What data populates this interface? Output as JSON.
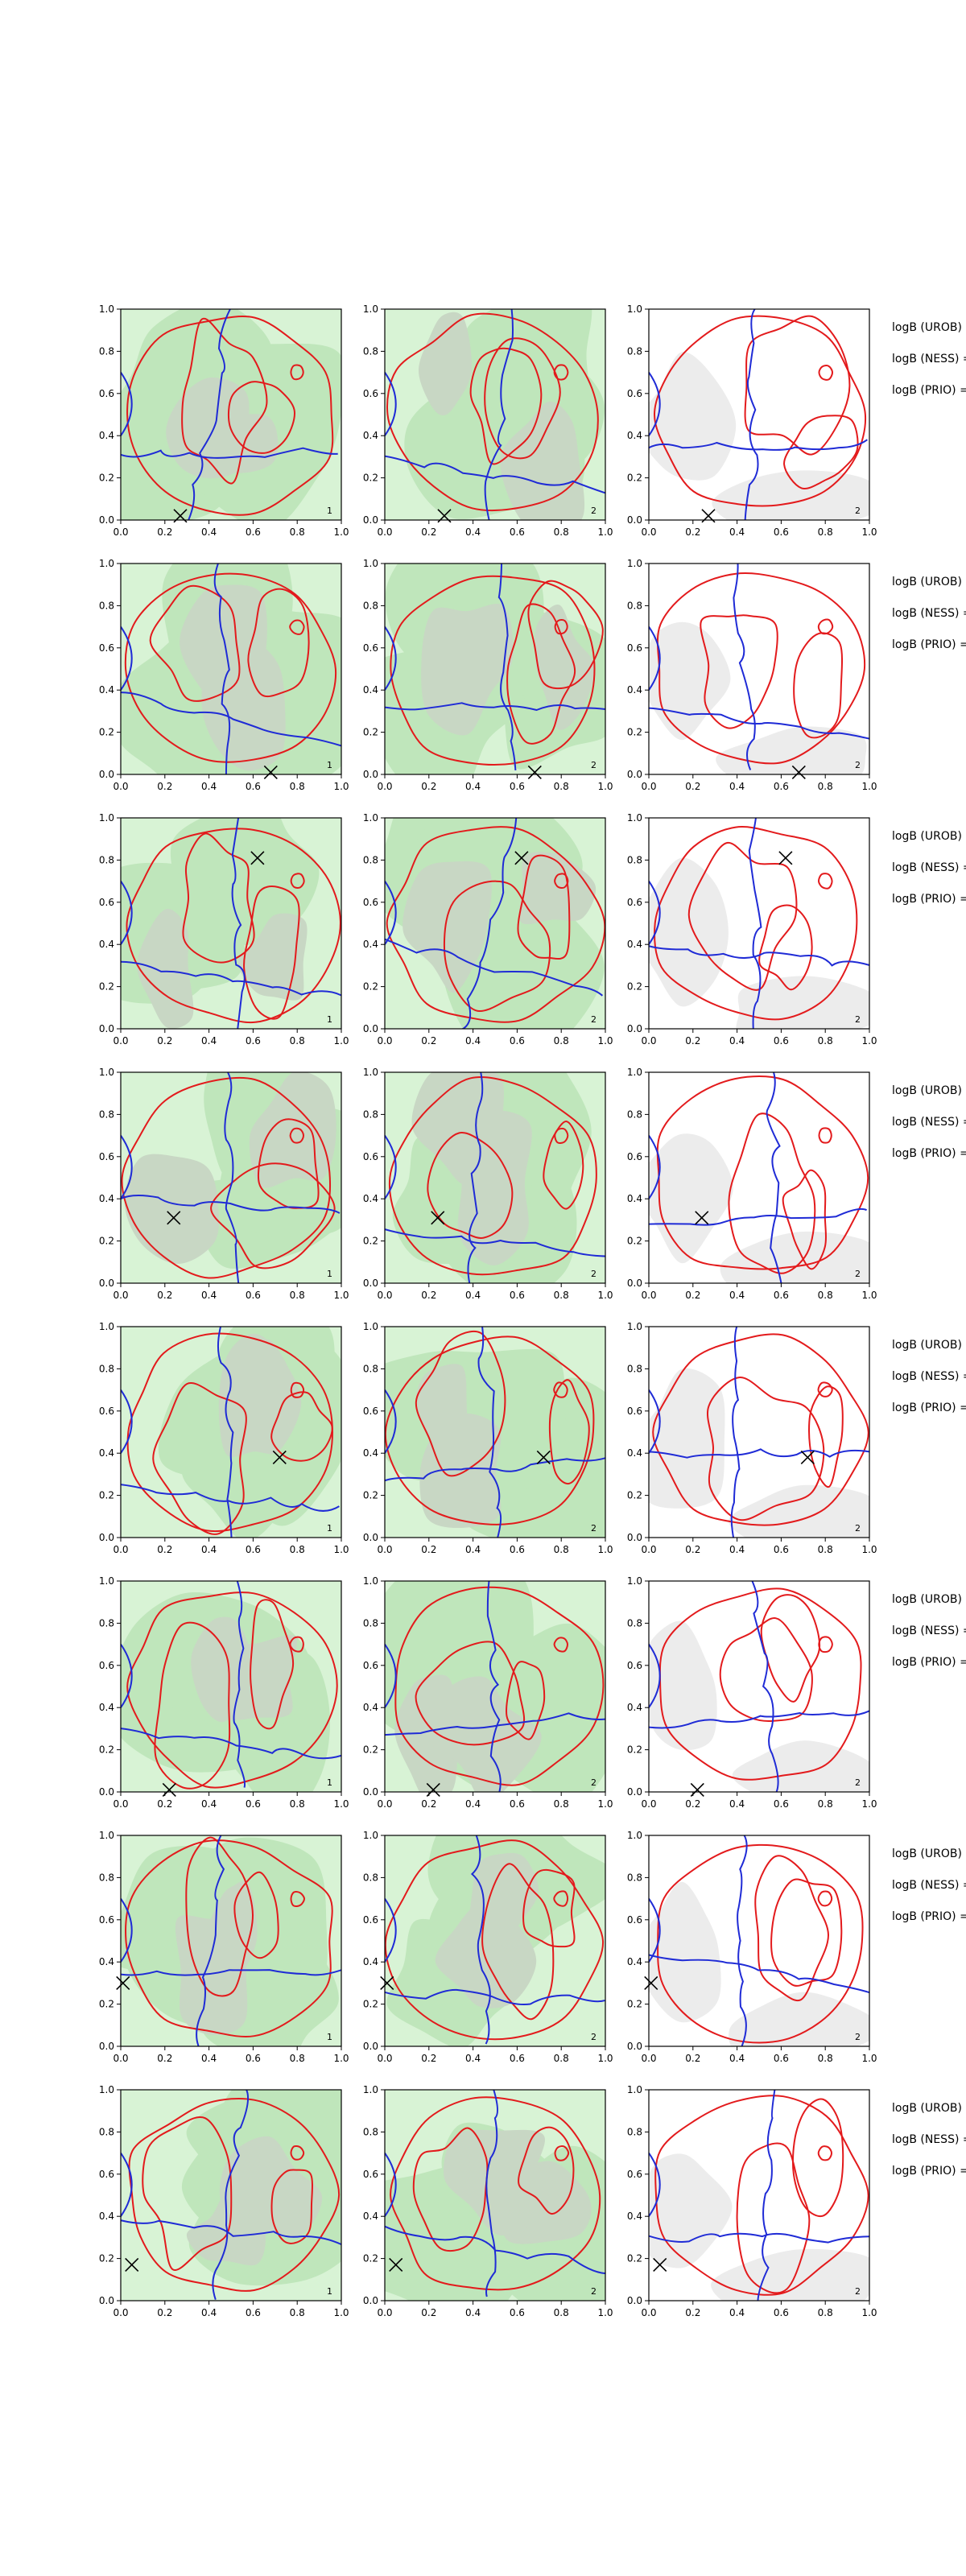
{
  "colors": {
    "bg_light_green": "#d8f3d5",
    "bg_mid_green": "#bfe6bb",
    "bg_grey_fill": "#c8d7c4",
    "panel3_bg": "#ffffff",
    "panel3_grey": "#ececec",
    "contour_red": "#e31a1c",
    "contour_blue": "#1f2bd6",
    "marker": "#000000"
  },
  "rows": [
    {
      "marker": [
        0.27,
        0.02
      ],
      "logb_labels": [
        "logB (UROB) =",
        "logB (NESS) =",
        "logB (PRIO) ="
      ]
    },
    {
      "marker": [
        0.68,
        0.01
      ],
      "logb_labels": [
        "logB (UROB) =",
        "logB (NESS) =",
        "logB (PRIO) ="
      ]
    },
    {
      "marker": [
        0.62,
        0.81
      ],
      "logb_labels": [
        "logB (UROB) =",
        "logB (NESS) =",
        "logB (PRIO) ="
      ]
    },
    {
      "marker": [
        0.24,
        0.31
      ],
      "logb_labels": [
        "logB (UROB) =",
        "logB (NESS) =",
        "logB (PRIO) ="
      ]
    },
    {
      "marker": [
        0.72,
        0.38
      ],
      "logb_labels": [
        "logB (UROB) =",
        "logB (NESS) =",
        "logB (PRIO) ="
      ]
    },
    {
      "marker": [
        0.22,
        0.01
      ],
      "logb_labels": [
        "logB (UROB) =",
        "logB (NESS) =",
        "logB (PRIO) ="
      ]
    },
    {
      "marker": [
        0.01,
        0.3
      ],
      "logb_labels": [
        "logB (UROB) =",
        "logB (NESS) =",
        "logB (PRIO) ="
      ]
    },
    {
      "marker": [
        0.05,
        0.17
      ],
      "logb_labels": [
        "logB (UROB) =",
        "logB (NESS) =",
        "logB (PRIO) ="
      ]
    }
  ],
  "panel_corner_labels": [
    "1",
    "2",
    "2"
  ],
  "chart_data": {
    "type": "contour",
    "grid": {
      "rows": 8,
      "cols": 3
    },
    "xlim": [
      0.0,
      1.0
    ],
    "ylim": [
      0.0,
      1.0
    ],
    "x_ticks": [
      "0.0",
      "0.2",
      "0.4",
      "0.6",
      "0.8",
      "1.0"
    ],
    "y_ticks": [
      "0.0",
      "0.2",
      "0.4",
      "0.6",
      "0.8",
      "1.0"
    ],
    "legend": "none",
    "grid_lines": false
  }
}
